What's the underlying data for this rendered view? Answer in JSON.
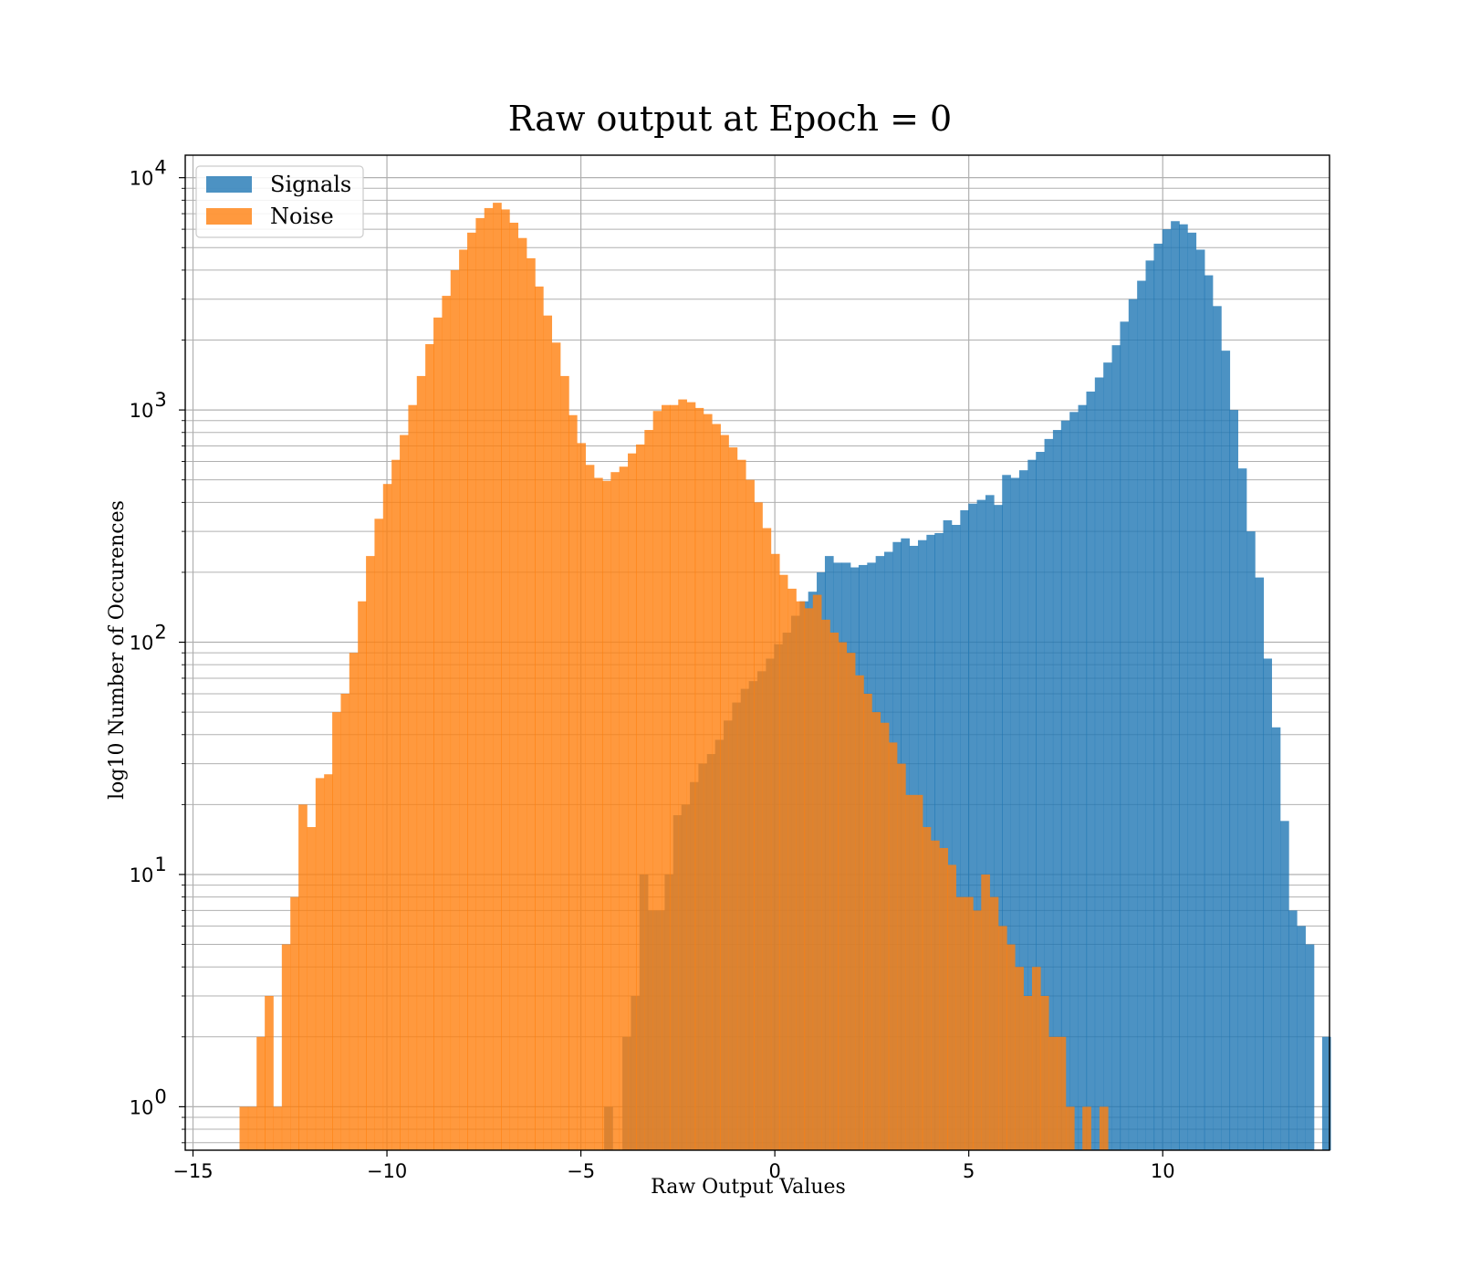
{
  "chart_data": {
    "type": "bar",
    "title": "Raw output at Epoch = 0",
    "xlabel": "Raw Output Values",
    "ylabel": "log10 Number of Occurences",
    "xlim": [
      -15.2,
      14.3
    ],
    "ylim": [
      0.65,
      12500
    ],
    "yscale": "log",
    "bin_width": 0.218,
    "grid": true,
    "legend_position": "top-left",
    "x_ticks": [
      -15,
      -10,
      -5,
      0,
      5,
      10
    ],
    "x_tick_labels": [
      "−15",
      "−10",
      "−5",
      "0",
      "5",
      "10"
    ],
    "y_ticks": [
      1,
      10,
      100,
      1000,
      10000
    ],
    "y_tick_exponents": [
      "0",
      "1",
      "2",
      "3",
      "4"
    ],
    "y_tick_base": "10",
    "series": [
      {
        "name": "Signals",
        "color": "#1f77b4",
        "opacity": 0.8,
        "bins": [
          [
            -4.4,
            1
          ],
          [
            -3.93,
            2
          ],
          [
            -3.71,
            3
          ],
          [
            -3.49,
            10
          ],
          [
            -3.28,
            7
          ],
          [
            -3.06,
            7
          ],
          [
            -2.84,
            10
          ],
          [
            -2.62,
            18
          ],
          [
            -2.41,
            20
          ],
          [
            -2.19,
            25
          ],
          [
            -1.97,
            30
          ],
          [
            -1.75,
            33
          ],
          [
            -1.54,
            38
          ],
          [
            -1.32,
            46
          ],
          [
            -1.1,
            55
          ],
          [
            -0.88,
            63
          ],
          [
            -0.67,
            68
          ],
          [
            -0.45,
            75
          ],
          [
            -0.23,
            85
          ],
          [
            -0.02,
            98
          ],
          [
            0.2,
            110
          ],
          [
            0.42,
            130
          ],
          [
            0.64,
            150
          ],
          [
            0.86,
            165
          ],
          [
            1.08,
            200
          ],
          [
            1.29,
            235
          ],
          [
            1.51,
            220
          ],
          [
            1.73,
            220
          ],
          [
            1.95,
            210
          ],
          [
            2.16,
            215
          ],
          [
            2.38,
            220
          ],
          [
            2.6,
            235
          ],
          [
            2.82,
            245
          ],
          [
            3.04,
            270
          ],
          [
            3.25,
            280
          ],
          [
            3.47,
            260
          ],
          [
            3.69,
            275
          ],
          [
            3.91,
            290
          ],
          [
            4.12,
            295
          ],
          [
            4.34,
            335
          ],
          [
            4.56,
            320
          ],
          [
            4.78,
            370
          ],
          [
            4.99,
            395
          ],
          [
            5.21,
            410
          ],
          [
            5.43,
            430
          ],
          [
            5.65,
            390
          ],
          [
            5.86,
            525
          ],
          [
            6.08,
            510
          ],
          [
            6.3,
            550
          ],
          [
            6.52,
            610
          ],
          [
            6.73,
            660
          ],
          [
            6.95,
            750
          ],
          [
            7.17,
            820
          ],
          [
            7.38,
            900
          ],
          [
            7.6,
            980
          ],
          [
            7.82,
            1050
          ],
          [
            8.03,
            1200
          ],
          [
            8.25,
            1380
          ],
          [
            8.47,
            1600
          ],
          [
            8.69,
            1900
          ],
          [
            8.9,
            2400
          ],
          [
            9.12,
            3000
          ],
          [
            9.34,
            3600
          ],
          [
            9.56,
            4400
          ],
          [
            9.77,
            5200
          ],
          [
            9.99,
            6000
          ],
          [
            10.21,
            6500
          ],
          [
            10.42,
            6300
          ],
          [
            10.64,
            5800
          ],
          [
            10.86,
            4900
          ],
          [
            11.07,
            3800
          ],
          [
            11.29,
            2800
          ],
          [
            11.51,
            1800
          ],
          [
            11.72,
            1000
          ],
          [
            11.94,
            560
          ],
          [
            12.16,
            300
          ],
          [
            12.38,
            190
          ],
          [
            12.59,
            85
          ],
          [
            12.81,
            43
          ],
          [
            13.03,
            17
          ],
          [
            13.24,
            7
          ],
          [
            13.46,
            6
          ],
          [
            13.68,
            5
          ],
          [
            14.11,
            2
          ]
        ]
      },
      {
        "name": "Noise",
        "color": "#ff7f0e",
        "opacity": 0.8,
        "bins": [
          [
            -13.8,
            1
          ],
          [
            -13.58,
            1
          ],
          [
            -13.36,
            2
          ],
          [
            -13.15,
            3
          ],
          [
            -12.93,
            1
          ],
          [
            -12.71,
            5
          ],
          [
            -12.49,
            8
          ],
          [
            -12.28,
            20
          ],
          [
            -12.06,
            16
          ],
          [
            -11.84,
            26
          ],
          [
            -11.62,
            27
          ],
          [
            -11.41,
            50
          ],
          [
            -11.19,
            60
          ],
          [
            -10.97,
            90
          ],
          [
            -10.75,
            150
          ],
          [
            -10.54,
            235
          ],
          [
            -10.32,
            340
          ],
          [
            -10.1,
            480
          ],
          [
            -9.88,
            610
          ],
          [
            -9.67,
            780
          ],
          [
            -9.45,
            1050
          ],
          [
            -9.23,
            1400
          ],
          [
            -9.01,
            1920
          ],
          [
            -8.8,
            2500
          ],
          [
            -8.58,
            3100
          ],
          [
            -8.36,
            4000
          ],
          [
            -8.14,
            4900
          ],
          [
            -7.93,
            5800
          ],
          [
            -7.71,
            6700
          ],
          [
            -7.49,
            7400
          ],
          [
            -7.27,
            7800
          ],
          [
            -7.06,
            7300
          ],
          [
            -6.84,
            6400
          ],
          [
            -6.62,
            5500
          ],
          [
            -6.4,
            4500
          ],
          [
            -6.19,
            3400
          ],
          [
            -5.97,
            2550
          ],
          [
            -5.75,
            1950
          ],
          [
            -5.53,
            1400
          ],
          [
            -5.32,
            950
          ],
          [
            -5.1,
            720
          ],
          [
            -4.88,
            580
          ],
          [
            -4.66,
            510
          ],
          [
            -4.45,
            495
          ],
          [
            -4.23,
            540
          ],
          [
            -4.01,
            570
          ],
          [
            -3.79,
            650
          ],
          [
            -3.58,
            710
          ],
          [
            -3.36,
            820
          ],
          [
            -3.14,
            990
          ],
          [
            -2.92,
            1050
          ],
          [
            -2.71,
            1050
          ],
          [
            -2.49,
            1110
          ],
          [
            -2.27,
            1080
          ],
          [
            -2.06,
            1020
          ],
          [
            -1.84,
            960
          ],
          [
            -1.62,
            870
          ],
          [
            -1.41,
            780
          ],
          [
            -1.19,
            690
          ],
          [
            -0.97,
            610
          ],
          [
            -0.75,
            500
          ],
          [
            -0.54,
            400
          ],
          [
            -0.32,
            310
          ],
          [
            -0.1,
            240
          ],
          [
            0.11,
            195
          ],
          [
            0.33,
            170
          ],
          [
            0.55,
            150
          ],
          [
            0.76,
            140
          ],
          [
            0.98,
            160
          ],
          [
            1.2,
            125
          ],
          [
            1.42,
            110
          ],
          [
            1.63,
            100
          ],
          [
            1.85,
            90
          ],
          [
            2.07,
            72
          ],
          [
            2.28,
            60
          ],
          [
            2.5,
            50
          ],
          [
            2.72,
            45
          ],
          [
            2.93,
            37
          ],
          [
            3.15,
            30
          ],
          [
            3.37,
            22
          ],
          [
            3.59,
            22
          ],
          [
            3.8,
            16
          ],
          [
            4.02,
            14
          ],
          [
            4.24,
            13
          ],
          [
            4.45,
            11
          ],
          [
            4.67,
            8
          ],
          [
            4.89,
            8
          ],
          [
            5.1,
            7
          ],
          [
            5.32,
            10
          ],
          [
            5.54,
            8
          ],
          [
            5.76,
            6
          ],
          [
            5.97,
            5
          ],
          [
            6.19,
            4
          ],
          [
            6.41,
            3
          ],
          [
            6.63,
            4
          ],
          [
            6.84,
            3
          ],
          [
            7.06,
            2
          ],
          [
            7.28,
            2
          ],
          [
            7.5,
            1
          ],
          [
            7.93,
            1
          ],
          [
            8.37,
            1
          ]
        ]
      }
    ]
  }
}
